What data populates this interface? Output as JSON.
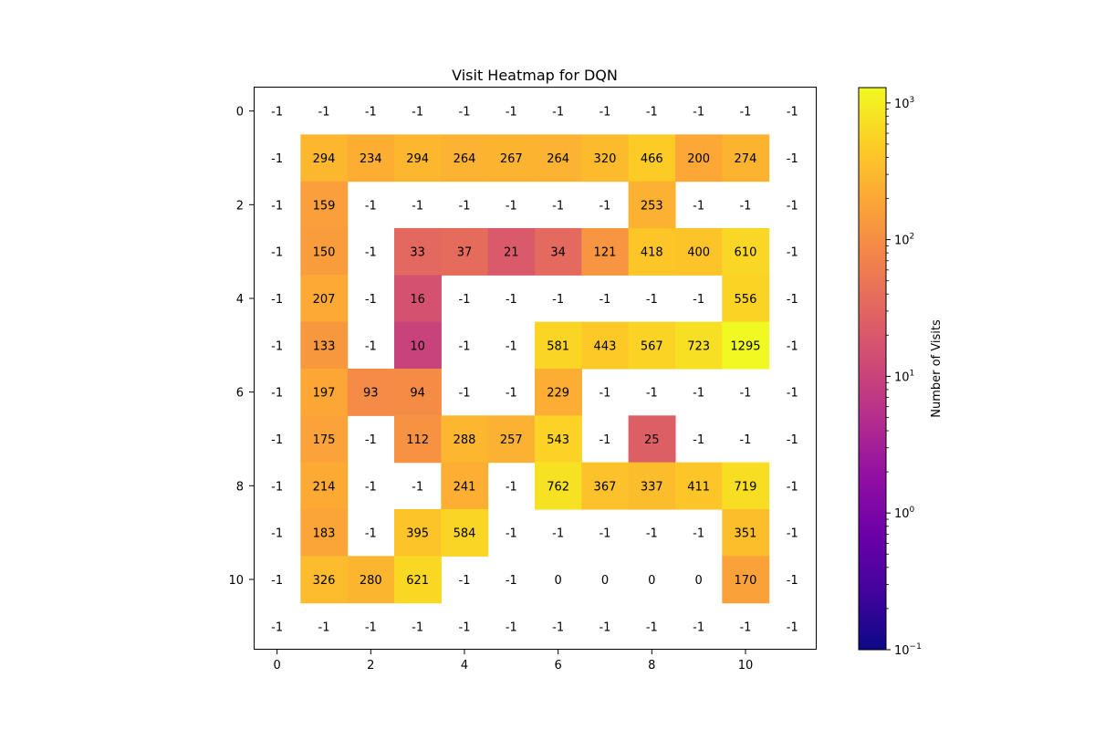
{
  "chart_data": {
    "type": "heatmap",
    "title": "Visit Heatmap for DQN",
    "xlabel": "",
    "ylabel": "",
    "x_ticks": [
      0,
      2,
      4,
      6,
      8,
      10
    ],
    "y_ticks": [
      0,
      2,
      4,
      6,
      8,
      10
    ],
    "colormap": "plasma",
    "colorbar": {
      "label": "Number of Visits",
      "scale": "log",
      "range": [
        0.1,
        1295
      ],
      "ticks": [
        {
          "value": 0.1,
          "label": "10",
          "exp": "−1"
        },
        {
          "value": 1,
          "label": "10",
          "exp": "0"
        },
        {
          "value": 10,
          "label": "10",
          "exp": "1"
        },
        {
          "value": 100,
          "label": "10",
          "exp": "2"
        },
        {
          "value": 1000,
          "label": "10",
          "exp": "3"
        }
      ]
    },
    "note_masked": "cells with value -1 or 0 are not colored (white)",
    "values": [
      [
        -1,
        -1,
        -1,
        -1,
        -1,
        -1,
        -1,
        -1,
        -1,
        -1,
        -1,
        -1
      ],
      [
        -1,
        294,
        234,
        294,
        264,
        267,
        264,
        320,
        466,
        200,
        274,
        -1
      ],
      [
        -1,
        159,
        -1,
        -1,
        -1,
        -1,
        -1,
        -1,
        253,
        -1,
        -1,
        -1
      ],
      [
        -1,
        150,
        -1,
        33,
        37,
        21,
        34,
        121,
        418,
        400,
        610,
        -1
      ],
      [
        -1,
        207,
        -1,
        16,
        -1,
        -1,
        -1,
        -1,
        -1,
        -1,
        556,
        -1
      ],
      [
        -1,
        133,
        -1,
        10,
        -1,
        -1,
        581,
        443,
        567,
        723,
        1295,
        -1
      ],
      [
        -1,
        197,
        93,
        94,
        -1,
        -1,
        229,
        -1,
        -1,
        -1,
        -1,
        -1
      ],
      [
        -1,
        175,
        -1,
        112,
        288,
        257,
        543,
        -1,
        25,
        -1,
        -1,
        -1
      ],
      [
        -1,
        214,
        -1,
        -1,
        241,
        -1,
        762,
        367,
        337,
        411,
        719,
        -1
      ],
      [
        -1,
        183,
        -1,
        395,
        584,
        -1,
        -1,
        -1,
        -1,
        -1,
        351,
        -1
      ],
      [
        -1,
        326,
        280,
        621,
        -1,
        -1,
        0,
        0,
        0,
        0,
        170,
        -1
      ],
      [
        -1,
        -1,
        -1,
        -1,
        -1,
        -1,
        -1,
        -1,
        -1,
        -1,
        -1,
        -1
      ]
    ]
  }
}
